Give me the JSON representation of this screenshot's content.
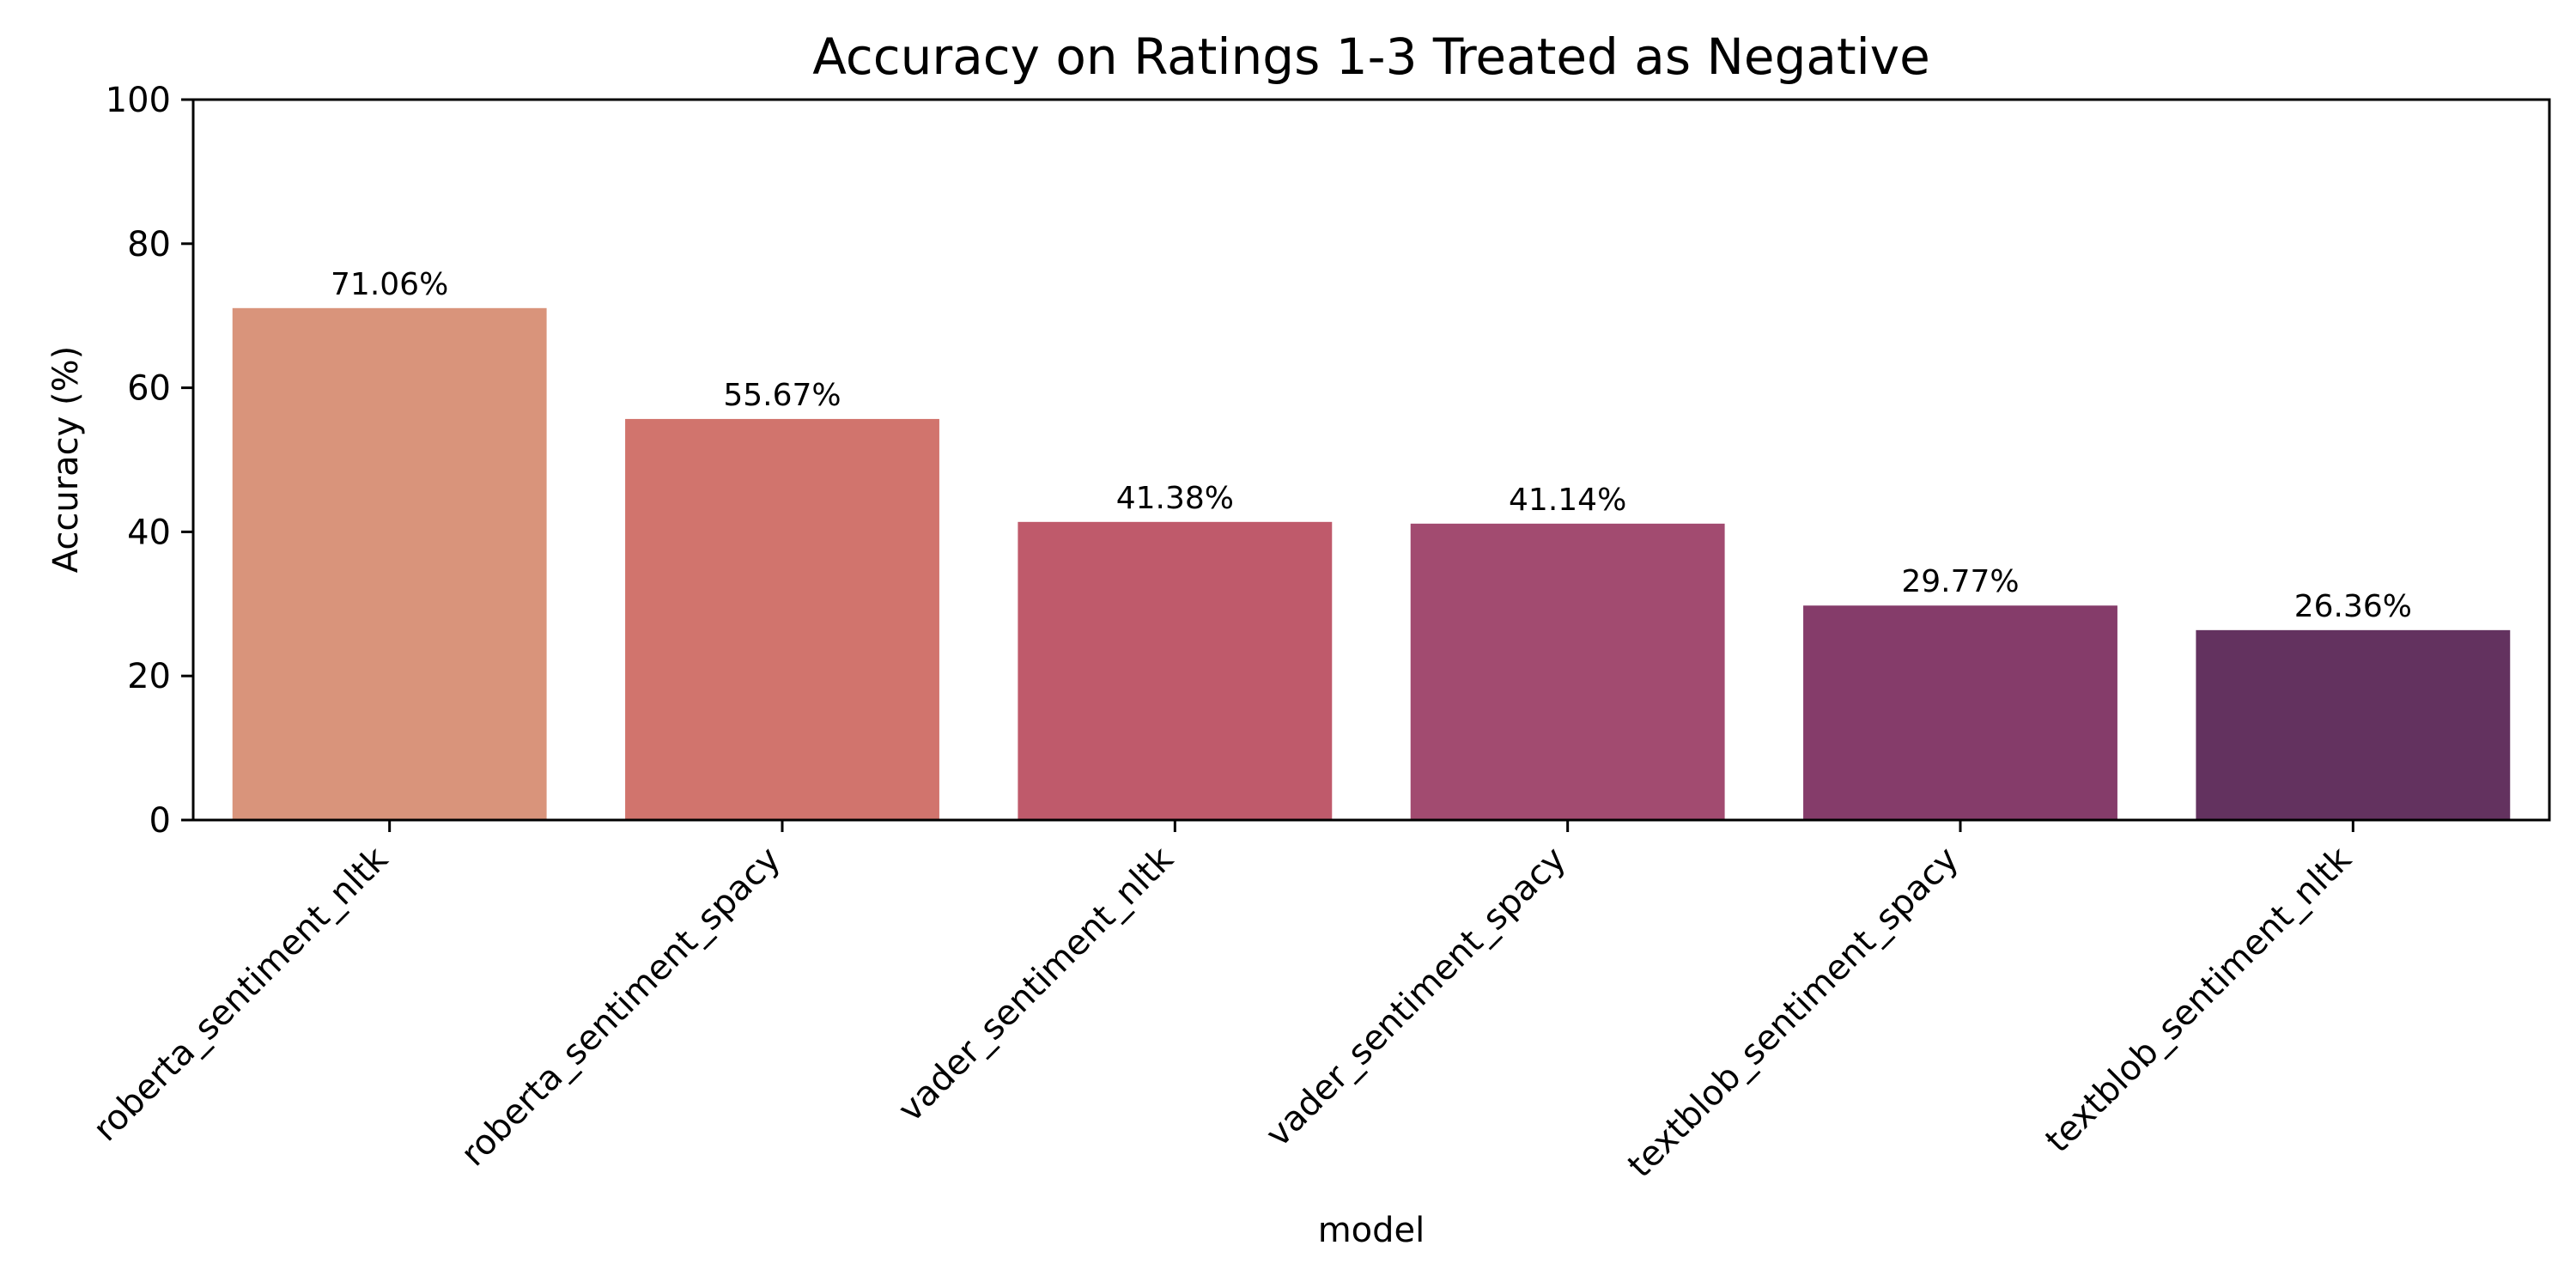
{
  "chart_data": {
    "type": "bar",
    "title": "Accuracy on Ratings 1-3 Treated as Negative",
    "xlabel": "model",
    "ylabel": "Accuracy (%)",
    "ylim": [
      0,
      100
    ],
    "yticks": [
      "0",
      "20",
      "40",
      "60",
      "80",
      "100"
    ],
    "categories": [
      "roberta_sentiment_nltk",
      "roberta_sentiment_spacy",
      "vader_sentiment_nltk",
      "vader_sentiment_spacy",
      "textblob_sentiment_spacy",
      "textblob_sentiment_nltk"
    ],
    "values": [
      71.06,
      55.67,
      41.38,
      41.14,
      29.77,
      26.36
    ],
    "value_labels": [
      "71.06%",
      "55.67%",
      "41.38%",
      "41.14%",
      "29.77%",
      "26.36%"
    ],
    "colors": [
      "#d9947b",
      "#d1746d",
      "#bf5a6b",
      "#a24b70",
      "#853c6a",
      "#63325f"
    ],
    "grid": false,
    "legend": "none"
  }
}
